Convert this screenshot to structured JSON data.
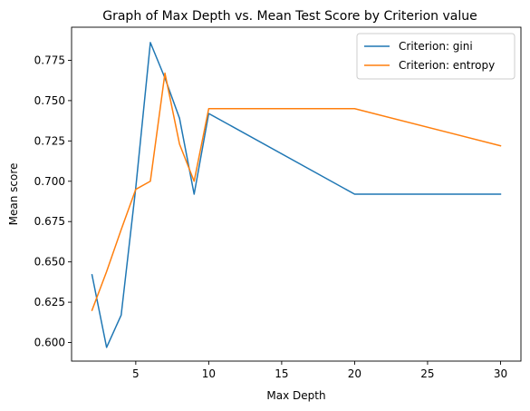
{
  "chart_data": {
    "type": "line",
    "title": "Graph of Max Depth vs. Mean Test Score by Criterion value",
    "xlabel": "Max Depth",
    "ylabel": "Mean score",
    "xlim": [
      0.6,
      31.4
    ],
    "ylim": [
      0.5885,
      0.7955
    ],
    "xticks": [
      5,
      10,
      15,
      20,
      25,
      30
    ],
    "yticks": [
      0.6,
      0.625,
      0.65,
      0.675,
      0.7,
      0.725,
      0.75,
      0.775
    ],
    "grid": false,
    "legend_position": "top-right",
    "x": [
      2,
      3,
      4,
      5,
      6,
      7,
      8,
      9,
      10,
      20,
      30
    ],
    "series": [
      {
        "name": "Criterion: gini",
        "color": "#1f77b4",
        "values": [
          0.642,
          0.597,
          0.617,
          0.696,
          0.786,
          0.764,
          0.739,
          0.692,
          0.742,
          0.692,
          0.692
        ]
      },
      {
        "name": "Criterion: entropy",
        "color": "#ff7f0e",
        "values": [
          0.62,
          0.644,
          0.67,
          0.695,
          0.7,
          0.767,
          0.723,
          0.7,
          0.745,
          0.745,
          0.722
        ]
      }
    ]
  }
}
